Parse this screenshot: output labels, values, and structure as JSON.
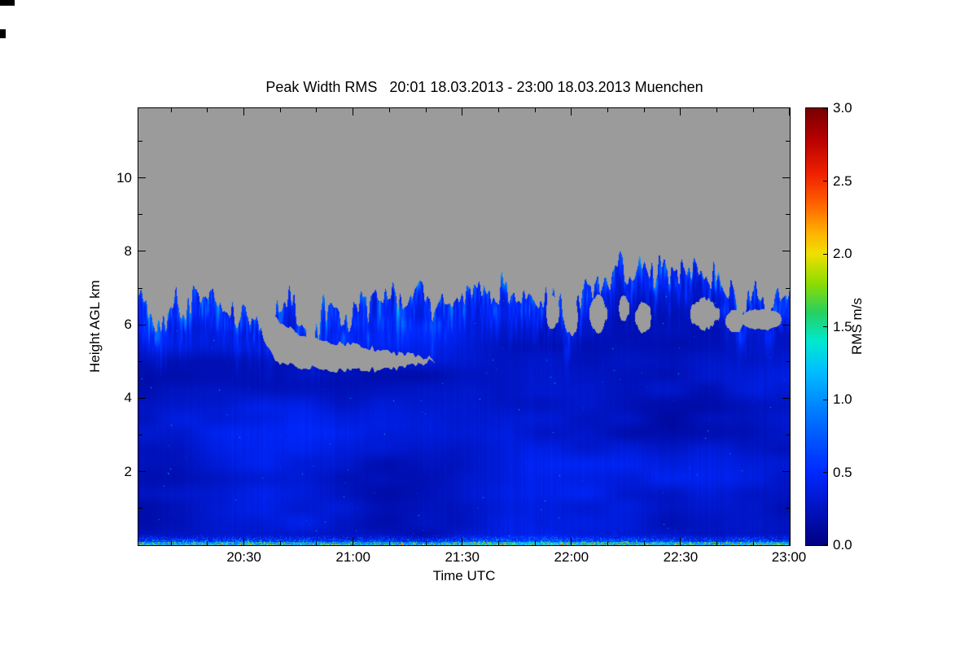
{
  "chart_data": {
    "type": "heatmap",
    "title": "Peak Width RMS   20:01 18.03.2013 - 23:00 18.03.2013 Muenchen",
    "xlabel": "Time UTC",
    "ylabel": "Height AGL km",
    "colorbar_label": "RMS m/s",
    "x_axis": {
      "start_minutes": 0,
      "end_minutes": 179,
      "start_label": "20:01",
      "ticks": [
        {
          "label": "20:30",
          "minutes": 29
        },
        {
          "label": "21:00",
          "minutes": 59
        },
        {
          "label": "21:30",
          "minutes": 89
        },
        {
          "label": "22:00",
          "minutes": 119
        },
        {
          "label": "22:30",
          "minutes": 149
        },
        {
          "label": "23:00",
          "minutes": 179
        }
      ],
      "minor_step_minutes": 10,
      "minor_offset_minutes": 9
    },
    "y_axis": {
      "min_km": 0,
      "max_km": 11.9,
      "ticks": [
        {
          "label": "2",
          "km": 2
        },
        {
          "label": "4",
          "km": 4
        },
        {
          "label": "6",
          "km": 6
        },
        {
          "label": "8",
          "km": 8
        },
        {
          "label": "10",
          "km": 10
        }
      ],
      "minor_step_km": 1
    },
    "colorbar": {
      "min": 0,
      "max": 3,
      "ticks": [
        {
          "label": "0.0",
          "value": 0.0
        },
        {
          "label": "0.5",
          "value": 0.5
        },
        {
          "label": "1.0",
          "value": 1.0
        },
        {
          "label": "1.5",
          "value": 1.5
        },
        {
          "label": "2.0",
          "value": 2.0
        },
        {
          "label": "2.5",
          "value": 2.5
        },
        {
          "label": "3.0",
          "value": 3.0
        }
      ]
    },
    "colormap_stops": [
      [
        0.0,
        "#000082"
      ],
      [
        0.5,
        "#0028ff"
      ],
      [
        0.9,
        "#0078ff"
      ],
      [
        1.2,
        "#00c0ff"
      ],
      [
        1.4,
        "#00e8d0"
      ],
      [
        1.6,
        "#28d060"
      ],
      [
        1.8,
        "#90dc00"
      ],
      [
        2.0,
        "#f0e000"
      ],
      [
        2.15,
        "#ffb000"
      ],
      [
        2.35,
        "#ff6000"
      ],
      [
        2.55,
        "#f02000"
      ],
      [
        2.8,
        "#b40000"
      ],
      [
        3.0,
        "#780000"
      ]
    ],
    "nodata_color": "#9b9b9b",
    "field": {
      "seed": 7,
      "typical_value_below_cloud": 0.3,
      "cloud_streak_value_max": 1.0,
      "surface_band_value_max": 1.6,
      "cloud_top_km": [
        [
          0.0,
          6.8
        ],
        [
          0.03,
          6.65
        ],
        [
          0.06,
          6.55
        ],
        [
          0.1,
          6.7
        ],
        [
          0.13,
          6.55
        ],
        [
          0.16,
          6.5
        ],
        [
          0.19,
          6.35
        ],
        [
          0.21,
          6.2
        ],
        [
          0.23,
          6.55
        ],
        [
          0.26,
          6.35
        ],
        [
          0.29,
          6.6
        ],
        [
          0.32,
          6.5
        ],
        [
          0.35,
          6.6
        ],
        [
          0.38,
          6.75
        ],
        [
          0.41,
          6.6
        ],
        [
          0.44,
          6.85
        ],
        [
          0.47,
          6.95
        ],
        [
          0.49,
          6.8
        ],
        [
          0.51,
          7.05
        ],
        [
          0.53,
          6.9
        ],
        [
          0.56,
          6.75
        ],
        [
          0.58,
          6.6
        ],
        [
          0.6,
          6.7
        ],
        [
          0.62,
          6.35
        ],
        [
          0.64,
          6.6
        ],
        [
          0.66,
          6.2
        ],
        [
          0.68,
          6.85
        ],
        [
          0.7,
          7.35
        ],
        [
          0.72,
          7.2
        ],
        [
          0.74,
          7.5
        ],
        [
          0.76,
          7.3
        ],
        [
          0.78,
          7.55
        ],
        [
          0.8,
          7.4
        ],
        [
          0.82,
          7.5
        ],
        [
          0.84,
          7.25
        ],
        [
          0.86,
          7.55
        ],
        [
          0.88,
          7.4
        ],
        [
          0.9,
          7.0
        ],
        [
          0.92,
          6.8
        ],
        [
          0.94,
          6.9
        ],
        [
          0.96,
          6.6
        ],
        [
          0.98,
          6.7
        ],
        [
          1.0,
          6.5
        ]
      ],
      "boundary_jitter_km": 0.5,
      "cloud_streak_depth_km": 1.7,
      "surface_band_km": 0.3,
      "gray_wedge": [
        [
          0.175,
          6.6
        ],
        [
          0.185,
          6.0
        ],
        [
          0.195,
          5.5
        ],
        [
          0.21,
          5.0
        ],
        [
          0.24,
          4.88
        ],
        [
          0.28,
          4.8
        ],
        [
          0.33,
          4.75
        ],
        [
          0.38,
          4.8
        ],
        [
          0.42,
          4.88
        ],
        [
          0.455,
          5.05
        ],
        [
          0.44,
          5.12
        ],
        [
          0.4,
          5.22
        ],
        [
          0.36,
          5.35
        ],
        [
          0.31,
          5.5
        ],
        [
          0.27,
          5.63
        ],
        [
          0.24,
          5.82
        ],
        [
          0.22,
          6.02
        ],
        [
          0.205,
          6.3
        ],
        [
          0.195,
          6.55
        ]
      ],
      "gray_holes": [
        [
          0.262,
          6.1,
          0.006,
          0.6
        ],
        [
          0.635,
          6.35,
          0.01,
          0.45
        ],
        [
          0.665,
          6.2,
          0.009,
          0.5
        ],
        [
          0.705,
          6.3,
          0.013,
          0.5
        ],
        [
          0.745,
          6.45,
          0.008,
          0.35
        ],
        [
          0.775,
          6.2,
          0.012,
          0.4
        ],
        [
          0.868,
          6.3,
          0.022,
          0.42
        ],
        [
          0.915,
          6.1,
          0.015,
          0.3
        ],
        [
          0.955,
          6.15,
          0.03,
          0.28
        ]
      ]
    }
  }
}
